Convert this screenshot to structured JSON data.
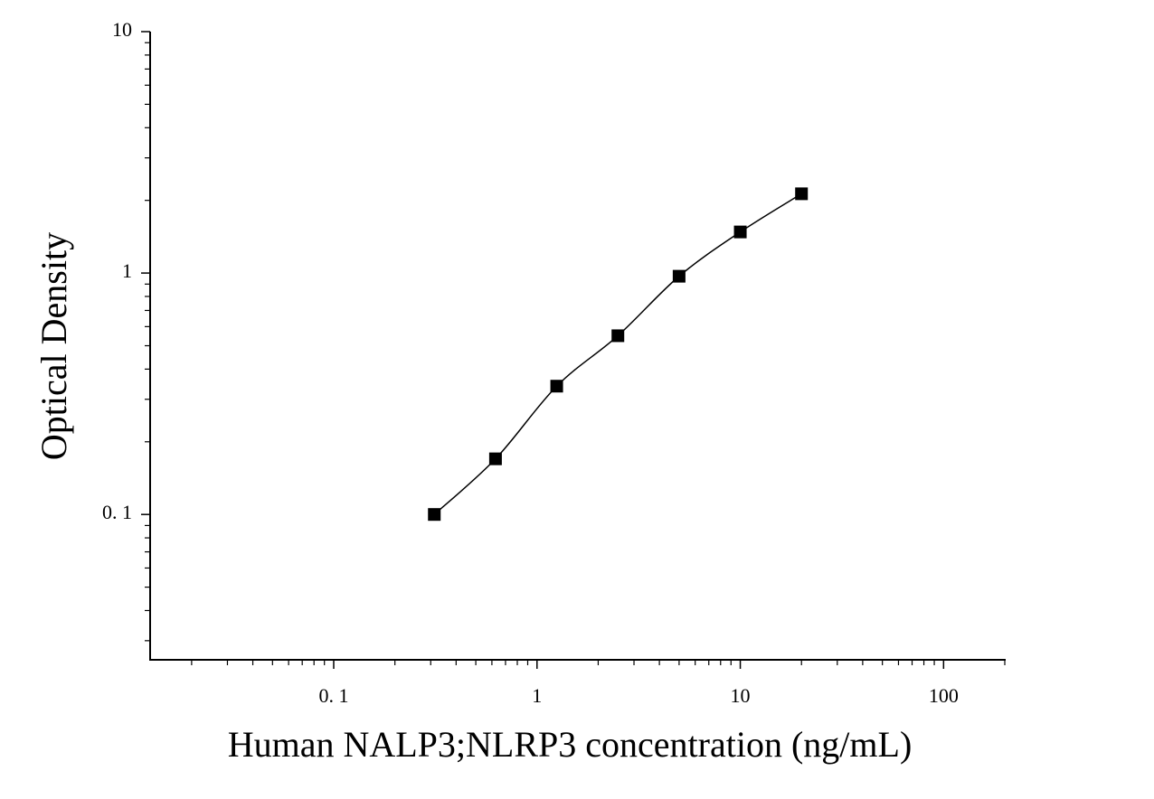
{
  "chart_data": {
    "type": "line",
    "xlabel": "Human NALP3;NLRP3 concentration (ng/mL)",
    "ylabel": "Optical Density",
    "x": [
      0.3125,
      0.625,
      1.25,
      2.5,
      5,
      10,
      20
    ],
    "series": [
      {
        "values": [
          0.1,
          0.17,
          0.34,
          0.55,
          0.97,
          1.48,
          2.13
        ],
        "color": "#000000"
      }
    ],
    "xscale": "log",
    "yscale": "log",
    "xlim": [
      0.0125,
      200
    ],
    "ylim": [
      0.025,
      10
    ],
    "xticks": [
      {
        "value": 0.1,
        "label": "0. 1"
      },
      1,
      10,
      100
    ],
    "yticks": [
      {
        "value": 0.1,
        "label": "0. 1"
      },
      1,
      10
    ],
    "xminorticks": [
      0.02,
      0.03,
      0.04,
      0.05,
      0.06,
      0.07,
      0.08,
      0.09,
      0.2,
      0.3,
      0.4,
      0.5,
      0.6,
      0.7,
      0.8,
      0.9,
      2,
      3,
      4,
      5,
      6,
      7,
      8,
      9,
      20,
      30,
      40,
      50,
      60,
      70,
      80,
      90,
      200
    ],
    "yminorticks": [
      0.03,
      0.04,
      0.05,
      0.06,
      0.07,
      0.08,
      0.09,
      0.2,
      0.3,
      0.4,
      0.5,
      0.6,
      0.7,
      0.8,
      0.9,
      2,
      3,
      4,
      5,
      6,
      7,
      8,
      9
    ],
    "grid": false
  }
}
